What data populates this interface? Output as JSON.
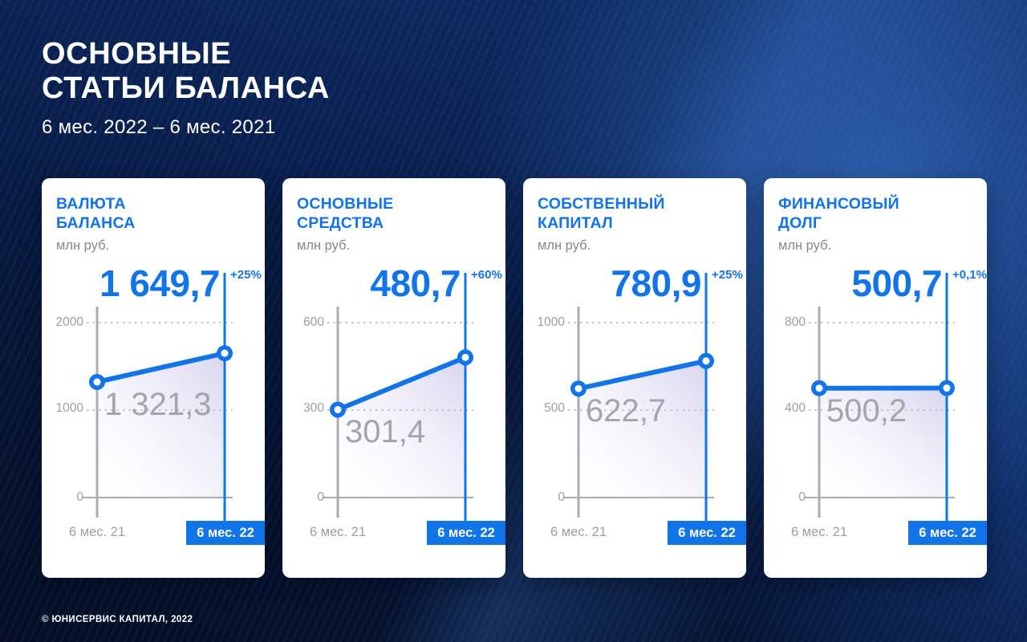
{
  "page": {
    "title_line1": "ОСНОВНЫЕ",
    "title_line2": "СТАТЬИ БАЛАНСА",
    "subtitle": "6 мес. 2022 – 6 мес. 2021",
    "footer": "© ЮНИСЕРВИС КАПИТАЛ, 2022"
  },
  "colors": {
    "accent": "#1174e8",
    "background": "#081c44",
    "gray_label": "#9b9ea4",
    "gray_value": "#a3a5aa",
    "card_bg": "#ffffff"
  },
  "x_labels": {
    "prev": "6 мес. 21",
    "curr": "6 мес. 22"
  },
  "chart_data": [
    {
      "type": "line",
      "title": "ВАЛЮТА БАЛАНСА",
      "title_line1": "ВАЛЮТА",
      "title_line2": "БАЛАНСА",
      "ylabel": "млн руб.",
      "categories": [
        "6 мес. 21",
        "6 мес. 22"
      ],
      "values": [
        1321.3,
        1649.7
      ],
      "previous_label": "1 321,3",
      "current_label": "1 649,7",
      "change": "+25%",
      "yticks": [
        2000,
        1000,
        0
      ],
      "ylim": [
        0,
        2000
      ],
      "grid": "dotted"
    },
    {
      "type": "line",
      "title": "ОСНОВНЫЕ СРЕДСТВА",
      "title_line1": "ОСНОВНЫЕ",
      "title_line2": "СРЕДСТВА",
      "ylabel": "млн руб.",
      "categories": [
        "6 мес. 21",
        "6 мес. 22"
      ],
      "values": [
        301.4,
        480.7
      ],
      "previous_label": "301,4",
      "current_label": "480,7",
      "change": "+60%",
      "yticks": [
        600,
        300,
        0
      ],
      "ylim": [
        0,
        600
      ],
      "grid": "dotted"
    },
    {
      "type": "line",
      "title": "СОБСТВЕННЫЙ КАПИТАЛ",
      "title_line1": "СОБСТВЕННЫЙ",
      "title_line2": "КАПИТАЛ",
      "ylabel": "млн руб.",
      "categories": [
        "6 мес. 21",
        "6 мес. 22"
      ],
      "values": [
        622.7,
        780.9
      ],
      "previous_label": "622,7",
      "current_label": "780,9",
      "change": "+25%",
      "yticks": [
        1000,
        500,
        0
      ],
      "ylim": [
        0,
        1000
      ],
      "grid": "dotted"
    },
    {
      "type": "line",
      "title": "ФИНАНСОВЫЙ ДОЛГ",
      "title_line1": "ФИНАНСОВЫЙ",
      "title_line2": "ДОЛГ",
      "ylabel": "млн руб.",
      "categories": [
        "6 мес. 21",
        "6 мес. 22"
      ],
      "values": [
        500.2,
        500.7
      ],
      "previous_label": "500,2",
      "current_label": "500,7",
      "change": "+0,1%",
      "yticks": [
        800,
        400,
        0
      ],
      "ylim": [
        0,
        800
      ],
      "grid": "dotted"
    }
  ]
}
